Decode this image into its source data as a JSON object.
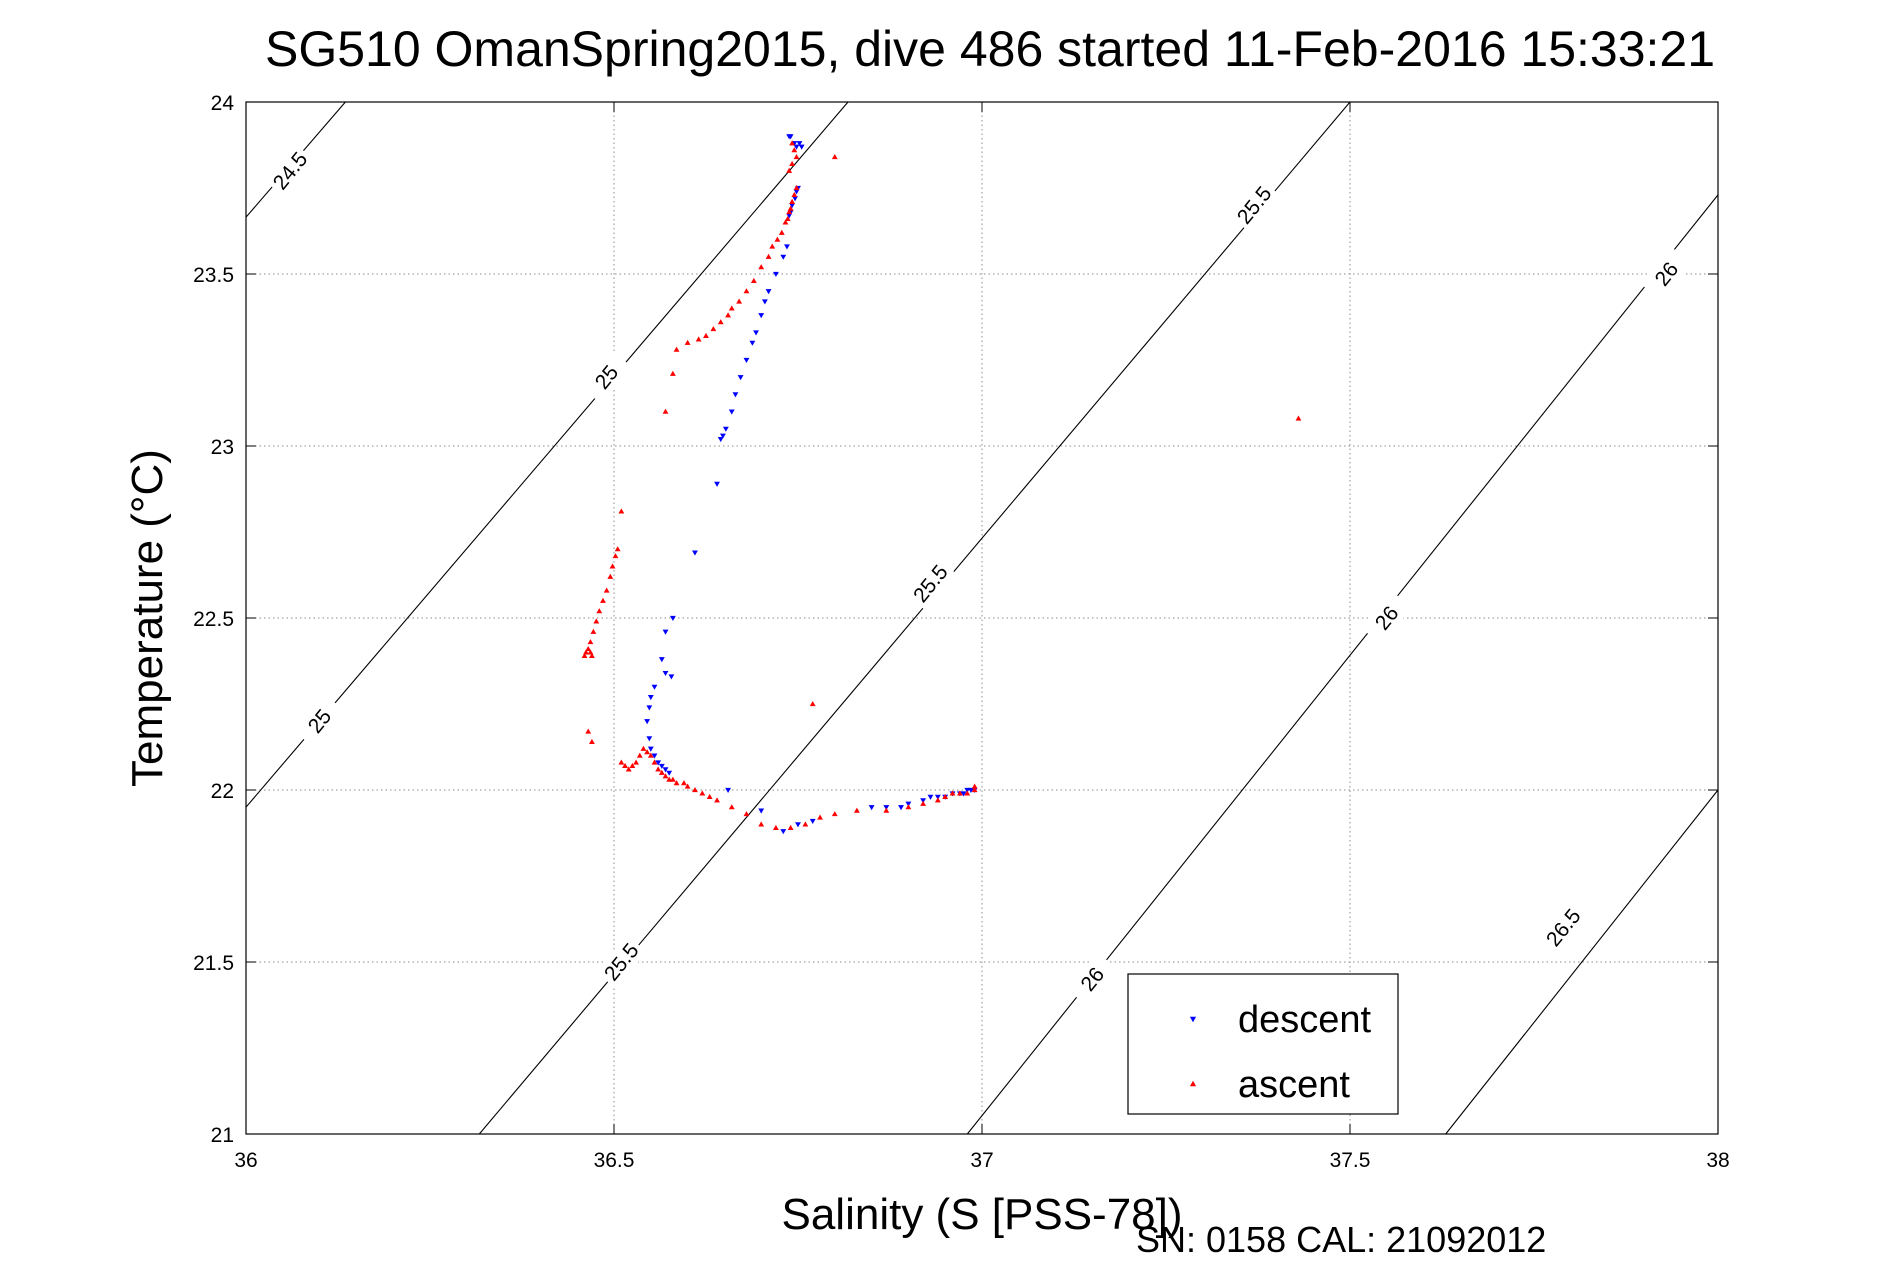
{
  "chart_data": {
    "type": "scatter",
    "title": "SG510 OmanSpring2015, dive 486 started 11-Feb-2016 15:33:21",
    "xlabel": "Salinity (S [PSS-78])",
    "ylabel": "Temperature (°C)",
    "xlim": [
      36,
      38
    ],
    "ylim": [
      21,
      24
    ],
    "xticks": [
      "36",
      "36.5",
      "37",
      "37.5",
      "38"
    ],
    "yticks": [
      "21",
      "21.5",
      "22",
      "22.5",
      "23",
      "23.5",
      "24"
    ],
    "grid": true,
    "legend_position": "bottom-right",
    "footer": "SN: 0158  CAL: 21092012",
    "density_contours": [
      {
        "segments": [
          [
            [
              36.0,
              23.665
            ],
            [
              36.135,
              24.0
            ]
          ]
        ],
        "labels": [
          {
            "text": "24.5",
            "x": 36.06,
            "y": 23.8,
            "angle": -51
          }
        ]
      },
      {
        "segments": [
          [
            [
              36.0,
              21.95
            ],
            [
              36.818,
              24.0
            ]
          ]
        ],
        "labels": [
          {
            "text": "25",
            "x": 36.1,
            "y": 22.2,
            "angle": -51
          },
          {
            "text": "25",
            "x": 36.49,
            "y": 23.2,
            "angle": -51
          }
        ]
      },
      {
        "segments": [
          [
            [
              36.317,
              21.0
            ],
            [
              37.5,
              24.0
            ]
          ]
        ],
        "labels": [
          {
            "text": "25.5",
            "x": 36.51,
            "y": 21.5,
            "angle": -51
          },
          {
            "text": "25.5",
            "x": 36.93,
            "y": 22.6,
            "angle": -51
          },
          {
            "text": "25.5",
            "x": 37.37,
            "y": 23.7,
            "angle": -51
          }
        ]
      },
      {
        "segments": [
          [
            [
              36.98,
              21.0
            ],
            [
              38.0,
              23.73
            ]
          ]
        ],
        "labels": [
          {
            "text": "26",
            "x": 37.15,
            "y": 21.45,
            "angle": -51
          },
          {
            "text": "26",
            "x": 37.55,
            "y": 22.5,
            "angle": -51
          },
          {
            "text": "26",
            "x": 37.93,
            "y": 23.5,
            "angle": -51
          }
        ]
      },
      {
        "segments": [
          [
            [
              37.63,
              21.0
            ],
            [
              38.0,
              22.0
            ]
          ]
        ],
        "labels": [
          {
            "text": "26.5",
            "x": 37.79,
            "y": 21.6,
            "angle": -51
          }
        ]
      }
    ],
    "series": [
      {
        "name": "descent",
        "color": "#0000ff",
        "marker": "triangle-down",
        "points": [
          [
            36.738,
            23.9
          ],
          [
            36.74,
            23.9
          ],
          [
            36.745,
            23.88
          ],
          [
            36.748,
            23.87
          ],
          [
            36.752,
            23.88
          ],
          [
            36.755,
            23.87
          ],
          [
            36.75,
            23.75
          ],
          [
            36.748,
            23.74
          ],
          [
            36.746,
            23.72
          ],
          [
            36.742,
            23.7
          ],
          [
            36.74,
            23.68
          ],
          [
            36.738,
            23.67
          ],
          [
            36.735,
            23.58
          ],
          [
            36.73,
            23.55
          ],
          [
            36.72,
            23.5
          ],
          [
            36.71,
            23.45
          ],
          [
            36.705,
            23.42
          ],
          [
            36.7,
            23.38
          ],
          [
            36.693,
            23.33
          ],
          [
            36.688,
            23.3
          ],
          [
            36.68,
            23.25
          ],
          [
            36.672,
            23.2
          ],
          [
            36.665,
            23.15
          ],
          [
            36.66,
            23.1
          ],
          [
            36.652,
            23.05
          ],
          [
            36.648,
            23.03
          ],
          [
            36.645,
            23.02
          ],
          [
            36.64,
            22.89
          ],
          [
            36.61,
            22.69
          ],
          [
            36.58,
            22.5
          ],
          [
            36.57,
            22.46
          ],
          [
            36.565,
            22.38
          ],
          [
            36.57,
            22.34
          ],
          [
            36.578,
            22.33
          ],
          [
            36.555,
            22.3
          ],
          [
            36.55,
            22.27
          ],
          [
            36.548,
            22.24
          ],
          [
            36.545,
            22.2
          ],
          [
            36.548,
            22.15
          ],
          [
            36.55,
            22.12
          ],
          [
            36.555,
            22.1
          ],
          [
            36.56,
            22.08
          ],
          [
            36.565,
            22.07
          ],
          [
            36.57,
            22.06
          ],
          [
            36.575,
            22.05
          ],
          [
            36.655,
            22.0
          ],
          [
            36.7,
            21.94
          ],
          [
            36.73,
            21.88
          ],
          [
            36.75,
            21.9
          ],
          [
            36.77,
            21.91
          ],
          [
            36.85,
            21.95
          ],
          [
            36.87,
            21.95
          ],
          [
            36.89,
            21.95
          ],
          [
            36.9,
            21.96
          ],
          [
            36.92,
            21.97
          ],
          [
            36.93,
            21.98
          ],
          [
            36.94,
            21.98
          ],
          [
            36.95,
            21.98
          ],
          [
            36.96,
            21.99
          ],
          [
            36.97,
            21.99
          ],
          [
            36.975,
            21.99
          ],
          [
            36.98,
            22.0
          ],
          [
            36.985,
            22.0
          ],
          [
            36.99,
            22.0
          ]
        ]
      },
      {
        "name": "ascent",
        "color": "#ff0000",
        "marker": "triangle-up",
        "points": [
          [
            36.742,
            23.88
          ],
          [
            36.745,
            23.86
          ],
          [
            36.748,
            23.84
          ],
          [
            36.8,
            23.84
          ],
          [
            36.742,
            23.82
          ],
          [
            36.738,
            23.8
          ],
          [
            36.748,
            23.75
          ],
          [
            36.745,
            23.73
          ],
          [
            36.742,
            23.71
          ],
          [
            36.74,
            23.69
          ],
          [
            36.738,
            23.68
          ],
          [
            36.736,
            23.66
          ],
          [
            36.733,
            23.65
          ],
          [
            36.728,
            23.62
          ],
          [
            36.722,
            23.6
          ],
          [
            36.715,
            23.58
          ],
          [
            36.71,
            23.55
          ],
          [
            36.7,
            23.52
          ],
          [
            36.69,
            23.48
          ],
          [
            36.68,
            23.45
          ],
          [
            36.67,
            23.42
          ],
          [
            36.66,
            23.4
          ],
          [
            36.655,
            23.38
          ],
          [
            36.645,
            23.36
          ],
          [
            36.635,
            23.34
          ],
          [
            36.625,
            23.32
          ],
          [
            36.615,
            23.31
          ],
          [
            36.6,
            23.3
          ],
          [
            36.585,
            23.28
          ],
          [
            36.58,
            23.21
          ],
          [
            36.57,
            23.1
          ],
          [
            36.51,
            22.81
          ],
          [
            36.505,
            22.7
          ],
          [
            36.502,
            22.68
          ],
          [
            36.498,
            22.65
          ],
          [
            36.495,
            22.62
          ],
          [
            36.49,
            22.58
          ],
          [
            36.485,
            22.55
          ],
          [
            36.48,
            22.52
          ],
          [
            36.476,
            22.49
          ],
          [
            36.472,
            22.46
          ],
          [
            36.468,
            22.43
          ],
          [
            36.465,
            22.41
          ],
          [
            36.462,
            22.4
          ],
          [
            36.46,
            22.39
          ],
          [
            36.47,
            22.39
          ],
          [
            36.468,
            22.4
          ],
          [
            36.465,
            22.17
          ],
          [
            36.47,
            22.14
          ],
          [
            36.77,
            22.25
          ],
          [
            36.51,
            22.08
          ],
          [
            36.515,
            22.07
          ],
          [
            36.52,
            22.06
          ],
          [
            36.525,
            22.07
          ],
          [
            36.53,
            22.08
          ],
          [
            36.535,
            22.1
          ],
          [
            36.54,
            22.12
          ],
          [
            36.545,
            22.11
          ],
          [
            36.55,
            22.1
          ],
          [
            36.555,
            22.08
          ],
          [
            36.56,
            22.06
          ],
          [
            36.565,
            22.05
          ],
          [
            36.57,
            22.04
          ],
          [
            36.575,
            22.03
          ],
          [
            36.58,
            22.03
          ],
          [
            36.585,
            22.02
          ],
          [
            36.595,
            22.02
          ],
          [
            36.6,
            22.01
          ],
          [
            36.61,
            22.0
          ],
          [
            36.62,
            21.99
          ],
          [
            36.63,
            21.98
          ],
          [
            36.64,
            21.97
          ],
          [
            36.66,
            21.95
          ],
          [
            36.68,
            21.93
          ],
          [
            36.7,
            21.9
          ],
          [
            36.72,
            21.89
          ],
          [
            36.74,
            21.89
          ],
          [
            36.76,
            21.9
          ],
          [
            36.78,
            21.92
          ],
          [
            36.8,
            21.93
          ],
          [
            36.83,
            21.94
          ],
          [
            36.87,
            21.94
          ],
          [
            36.9,
            21.95
          ],
          [
            36.92,
            21.96
          ],
          [
            36.94,
            21.97
          ],
          [
            36.95,
            21.98
          ],
          [
            36.96,
            21.99
          ],
          [
            36.97,
            21.99
          ],
          [
            36.98,
            21.99
          ],
          [
            36.99,
            22.0
          ],
          [
            36.99,
            22.01
          ],
          [
            37.43,
            23.08
          ]
        ]
      }
    ]
  }
}
